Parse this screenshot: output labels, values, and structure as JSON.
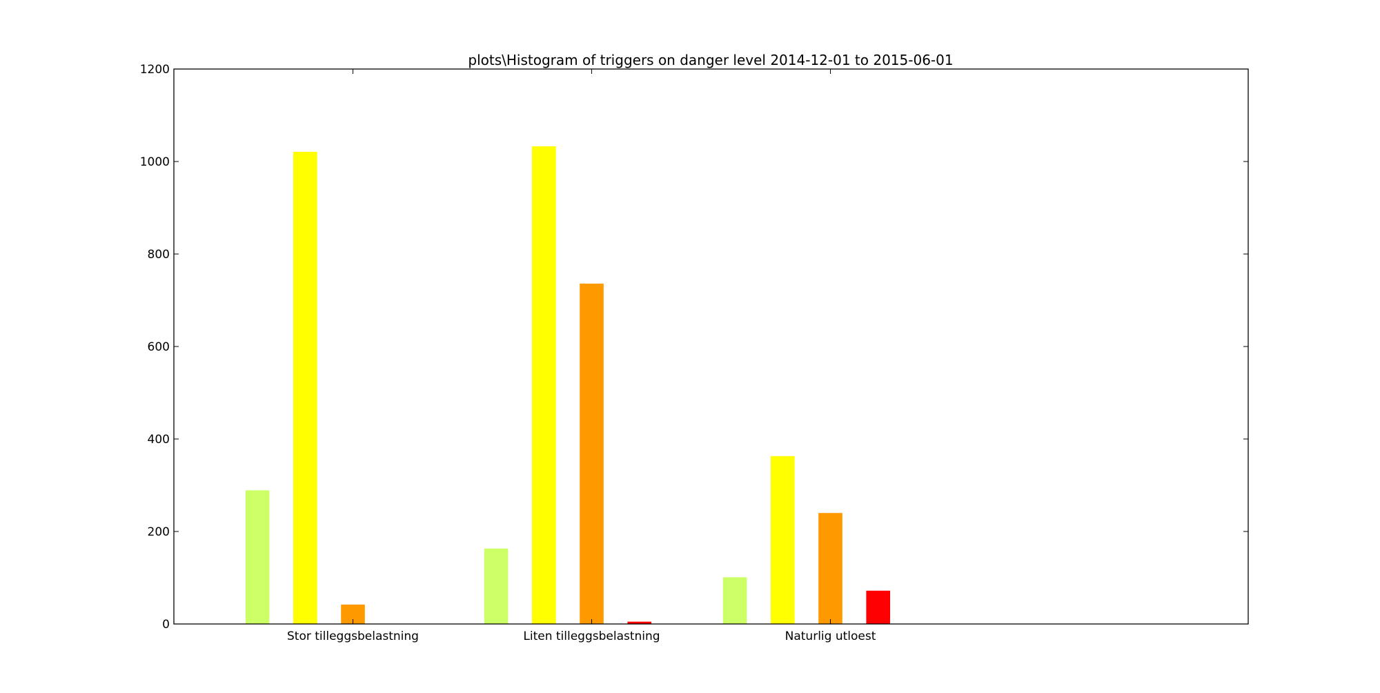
{
  "chart_data": {
    "type": "bar",
    "title": "plots\\Histogram of triggers on danger level 2014-12-01 to 2015-06-01",
    "xlabel": "",
    "ylabel": "",
    "categories": [
      "Stor tilleggsbelastning",
      "Liten tilleggsbelastning",
      "Naturlig utloest"
    ],
    "ylim": [
      0,
      1200
    ],
    "yticks": [
      0,
      200,
      400,
      600,
      800,
      1000,
      1200
    ],
    "grid": false,
    "legend": "none",
    "series": [
      {
        "color": "#ccff66",
        "values": [
          289,
          163,
          101
        ]
      },
      {
        "color": "#ffff00",
        "values": [
          1021,
          1033,
          363
        ]
      },
      {
        "color": "#ff9900",
        "values": [
          42,
          736,
          240
        ]
      },
      {
        "color": "#ff0000",
        "values": [
          0,
          5,
          72
        ]
      }
    ]
  }
}
